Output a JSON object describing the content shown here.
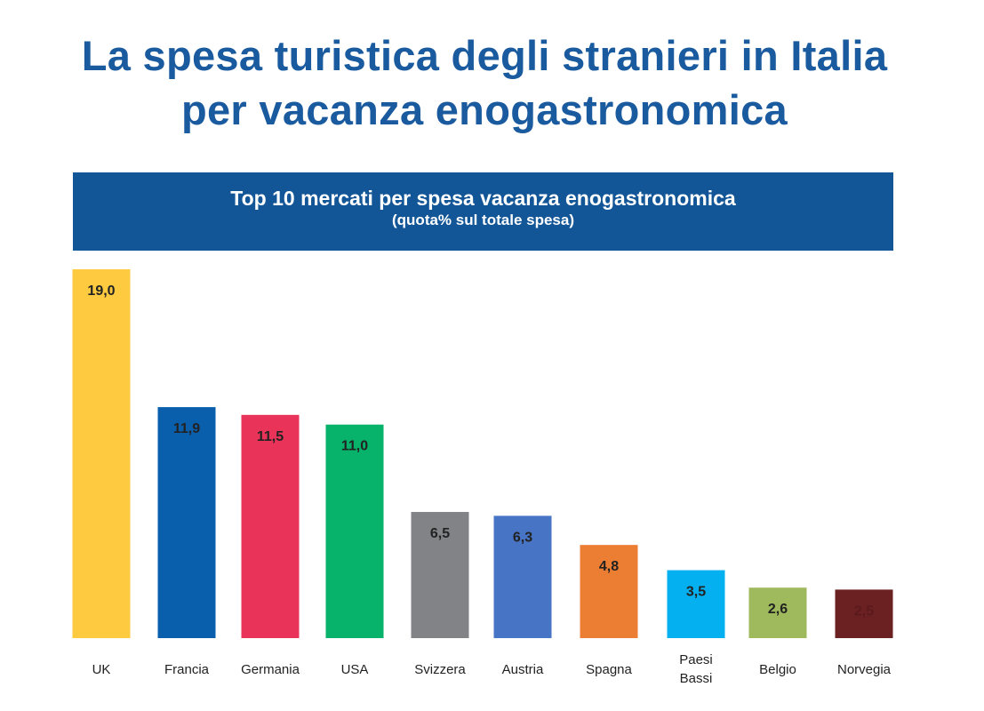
{
  "page": {
    "title_line1": "La spesa turistica degli stranieri in Italia",
    "title_line2": "per vacanza enogastronomica"
  },
  "chart_data": {
    "type": "bar",
    "title": "Top 10 mercati per spesa vacanza enogastronomica",
    "subtitle": "(quota%  sul totale spesa)",
    "categories": [
      "UK",
      "Francia",
      "Germania",
      "USA",
      "Svizzera",
      "Austria",
      "Spagna",
      "Paesi Bassi",
      "Belgio",
      "Norvegia"
    ],
    "category_lines": [
      [
        "UK"
      ],
      [
        "Francia"
      ],
      [
        "Germania"
      ],
      [
        "USA"
      ],
      [
        "Svizzera"
      ],
      [
        "Austria"
      ],
      [
        "Spagna"
      ],
      [
        "Paesi",
        "Bassi"
      ],
      [
        "Belgio"
      ],
      [
        "Norvegia"
      ]
    ],
    "values": [
      19.0,
      11.9,
      11.5,
      11.0,
      6.5,
      6.3,
      4.8,
      3.5,
      2.6,
      2.5
    ],
    "value_labels": [
      "19,0",
      "11,9",
      "11,5",
      "11,0",
      "6,5",
      "6,3",
      "4,8",
      "3,5",
      "2,6",
      "2,5"
    ],
    "colors": [
      "#fdca40",
      "#0a5fad",
      "#ea3359",
      "#07b26a",
      "#828387",
      "#4774c4",
      "#ec7e34",
      "#04b0ef",
      "#9fba5c",
      "#6b2022"
    ],
    "label_colors": [
      "#222222",
      "#222222",
      "#222222",
      "#222222",
      "#222222",
      "#222222",
      "#222222",
      "#222222",
      "#222222",
      "#5a1a1c"
    ],
    "xlabel": "",
    "ylabel": "",
    "ylim": [
      0,
      19.0
    ],
    "grid": false,
    "legend": "none"
  }
}
